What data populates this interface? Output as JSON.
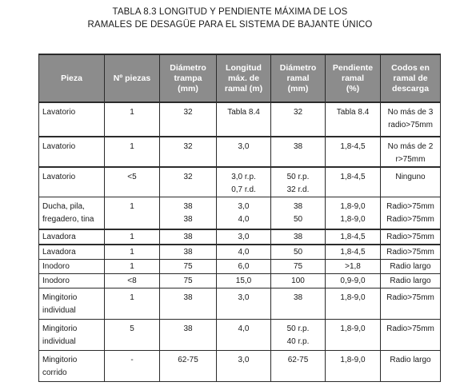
{
  "title": {
    "line1": "TABLA 8.3  LONGITUD Y PENDIENTE MÁXIMA DE LOS",
    "line2": "RAMALES DE DESAGÜE PARA EL SISTEMA DE BAJANTE ÚNICO"
  },
  "headers": [
    [
      "Pieza"
    ],
    [
      "Nº piezas"
    ],
    [
      "Diámetro",
      "trampa",
      "(mm)"
    ],
    [
      "Longitud",
      "máx. de",
      "ramal (m)"
    ],
    [
      "Diámetro",
      "ramal",
      "(mm)"
    ],
    [
      "Pendiente",
      "ramal",
      "(%)"
    ],
    [
      "Codos en",
      "ramal de",
      "descarga"
    ]
  ],
  "rows": [
    {
      "cells": [
        [
          "Lavatorio"
        ],
        [
          "1"
        ],
        [
          "32"
        ],
        [
          "Tabla 8.4"
        ],
        [
          "32"
        ],
        [
          "Tabla 8.4"
        ],
        [
          "No más de 3",
          "radio>75mm"
        ]
      ]
    },
    {
      "cells": [
        [
          "Lavatorio"
        ],
        [
          "1"
        ],
        [
          "32"
        ],
        [
          "3,0"
        ],
        [
          "38"
        ],
        [
          "1,8-4,5"
        ],
        [
          "No más de 2",
          "r>75mm"
        ]
      ]
    },
    {
      "cells": [
        [
          "Lavatorio"
        ],
        [
          "<5"
        ],
        [
          "32"
        ],
        [
          "3,0 r.p.",
          "0,7 r.d."
        ],
        [
          "50 r.p.",
          "32 r.d."
        ],
        [
          "1,8-4,5"
        ],
        [
          "Ninguno"
        ]
      ]
    },
    {
      "cells": [
        [
          "Ducha, pila,",
          "fregadero, tina"
        ],
        [
          "1"
        ],
        [
          "38",
          "38"
        ],
        [
          "3,0",
          "4,0"
        ],
        [
          "38",
          "50"
        ],
        [
          "1,8-9,0",
          "1,8-9,0"
        ],
        [
          "Radio>75mm",
          "Radio>75mm"
        ]
      ]
    },
    {
      "cells": [
        [
          "Lavadora"
        ],
        [
          "1"
        ],
        [
          "38"
        ],
        [
          "3,0"
        ],
        [
          "38"
        ],
        [
          "1,8-4,5"
        ],
        [
          "Radio>75mm"
        ]
      ]
    },
    {
      "cells": [
        [
          "Lavadora"
        ],
        [
          "1"
        ],
        [
          "38"
        ],
        [
          "4,0"
        ],
        [
          "50"
        ],
        [
          "1,8-4,5"
        ],
        [
          "Radio>75mm"
        ]
      ]
    },
    {
      "cells": [
        [
          "Inodoro"
        ],
        [
          "1"
        ],
        [
          "75"
        ],
        [
          "6,0"
        ],
        [
          "75"
        ],
        [
          ">1,8"
        ],
        [
          "Radio largo"
        ]
      ]
    },
    {
      "cells": [
        [
          "Inodoro"
        ],
        [
          "<8"
        ],
        [
          "75"
        ],
        [
          "15,0"
        ],
        [
          "100"
        ],
        [
          "0,9-9,0"
        ],
        [
          "Radio largo"
        ]
      ]
    },
    {
      "cells": [
        [
          "Mingitorio",
          "individual"
        ],
        [
          "1"
        ],
        [
          "38"
        ],
        [
          "3,0"
        ],
        [
          "38"
        ],
        [
          "1,8-9,0"
        ],
        [
          "Radio>75mm"
        ]
      ]
    },
    {
      "cells": [
        [
          "Mingitorio",
          "individual"
        ],
        [
          "5"
        ],
        [
          "38"
        ],
        [
          "4,0"
        ],
        [
          "50 r.p.",
          "40 r.p."
        ],
        [
          "1,8-9,0"
        ],
        [
          "Radio>75mm"
        ]
      ]
    },
    {
      "cells": [
        [
          "Mingitorio",
          "corrido"
        ],
        [
          "-"
        ],
        [
          "62-75"
        ],
        [
          "3,0"
        ],
        [
          "62-75"
        ],
        [
          "1,8-9,0"
        ],
        [
          "Radio largo"
        ]
      ]
    }
  ]
}
